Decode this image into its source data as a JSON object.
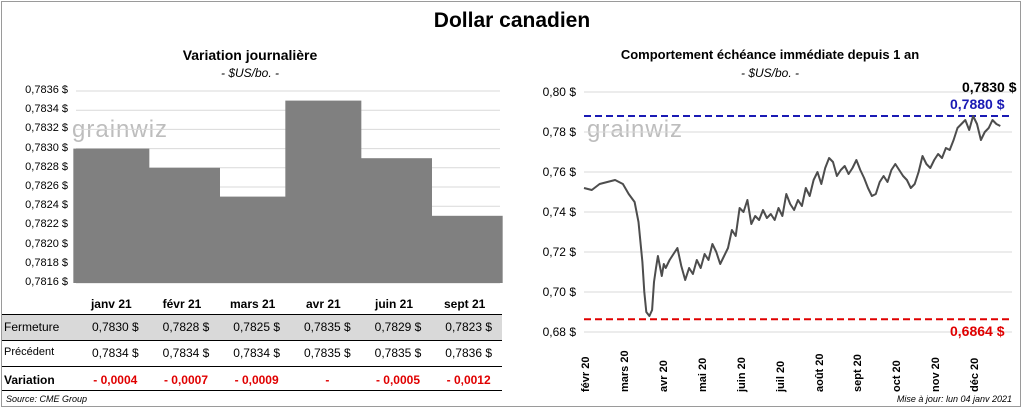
{
  "title": "Dollar canadien",
  "left_chart": {
    "title": "Variation  journalière",
    "unit": "- $US/bo. -",
    "watermark": "grainwiz"
  },
  "right_chart": {
    "title": "Comportement échéance immédiate depuis 1 an",
    "unit": "- $US/bo. -",
    "watermark": "grainwiz",
    "annotations": {
      "last": "0,7830 $",
      "high": "0,7880 $",
      "low": "0,6864 $"
    }
  },
  "table": {
    "rows": [
      {
        "label": "Fermeture",
        "values": [
          "0,7830  $",
          "0,7828  $",
          "0,7825  $",
          "0,7835  $",
          "0,7829  $",
          "0,7823  $"
        ]
      },
      {
        "label": "Précédent",
        "values": [
          "0,7834  $",
          "0,7834  $",
          "0,7834  $",
          "0,7835  $",
          "0,7835  $",
          "0,7836  $"
        ]
      },
      {
        "label": "Variation",
        "values": [
          "- 0,0004",
          "- 0,0007",
          "- 0,0009",
          "-",
          "- 0,0005",
          "- 0,0012"
        ]
      }
    ]
  },
  "footer": {
    "source": "Source: CME Group",
    "updated": "Mise à jour: lun 04 janv 2021"
  },
  "colors": {
    "bar": "#808080",
    "line": "#4d4d4d",
    "high_line": "#1a1ab4",
    "low_line": "#e00000",
    "negative": "#e00000"
  },
  "chart_data": [
    {
      "type": "bar",
      "title": "Variation  journalière",
      "ylabel": "$US/bo.",
      "categories": [
        "janv 21",
        "févr 21",
        "mars 21",
        "avr 21",
        "juin 21",
        "sept 21"
      ],
      "values": [
        0.783,
        0.7828,
        0.7825,
        0.7835,
        0.7829,
        0.7823
      ],
      "ylim": [
        0.7816,
        0.7836
      ],
      "yticks": [
        0.7816,
        0.7818,
        0.782,
        0.7822,
        0.7824,
        0.7826,
        0.7828,
        0.783,
        0.7832,
        0.7834,
        0.7836
      ],
      "ytick_labels": [
        "0,7816 $",
        "0,7818 $",
        "0,7820 $",
        "0,7822 $",
        "0,7824 $",
        "0,7826 $",
        "0,7828 $",
        "0,7830 $",
        "0,7832 $",
        "0,7834 $",
        "0,7836 $"
      ],
      "grid": true
    },
    {
      "type": "line",
      "title": "Comportement échéance immédiate depuis 1 an",
      "ylabel": "$US/bo.",
      "ylim": [
        0.68,
        0.8
      ],
      "yticks": [
        0.68,
        0.7,
        0.72,
        0.74,
        0.76,
        0.78,
        0.8
      ],
      "ytick_labels": [
        "0,68 $",
        "0,70 $",
        "0,72 $",
        "0,74 $",
        "0,76 $",
        "0,78 $",
        "0,80 $"
      ],
      "x_months": [
        "févr 20",
        "mars 20",
        "avr 20",
        "mai 20",
        "juin 20",
        "juil 20",
        "août 20",
        "sept 20",
        "oct 20",
        "nov 20",
        "déc 20"
      ],
      "high": 0.788,
      "low": 0.6864,
      "last": 0.783,
      "x": [
        0,
        0.2,
        0.4,
        0.6,
        0.8,
        1.0,
        1.15,
        1.3,
        1.4,
        1.5,
        1.55,
        1.6,
        1.68,
        1.75,
        1.8,
        1.85,
        1.9,
        2.0,
        2.05,
        2.1,
        2.2,
        2.3,
        2.4,
        2.5,
        2.6,
        2.7,
        2.8,
        2.9,
        3.0,
        3.1,
        3.2,
        3.3,
        3.4,
        3.5,
        3.6,
        3.7,
        3.8,
        3.9,
        4.0,
        4.1,
        4.2,
        4.3,
        4.4,
        4.5,
        4.6,
        4.7,
        4.8,
        4.9,
        5.0,
        5.1,
        5.2,
        5.3,
        5.4,
        5.5,
        5.6,
        5.7,
        5.8,
        5.9,
        6.0,
        6.1,
        6.2,
        6.3,
        6.4,
        6.5,
        6.6,
        6.7,
        6.8,
        6.9,
        7.0,
        7.1,
        7.2,
        7.3,
        7.4,
        7.5,
        7.6,
        7.7,
        7.8,
        7.9,
        8.0,
        8.1,
        8.2,
        8.3,
        8.4,
        8.5,
        8.6,
        8.7,
        8.8,
        8.9,
        9.0,
        9.1,
        9.2,
        9.3,
        9.4,
        9.5,
        9.6,
        9.7,
        9.8,
        9.9,
        10.0,
        10.1,
        10.2,
        10.3,
        10.4,
        10.5,
        10.6,
        10.7
      ],
      "y": [
        0.752,
        0.751,
        0.754,
        0.755,
        0.756,
        0.754,
        0.749,
        0.745,
        0.735,
        0.715,
        0.7,
        0.69,
        0.688,
        0.691,
        0.705,
        0.712,
        0.718,
        0.708,
        0.714,
        0.712,
        0.716,
        0.719,
        0.722,
        0.713,
        0.706,
        0.712,
        0.709,
        0.716,
        0.712,
        0.719,
        0.716,
        0.724,
        0.72,
        0.714,
        0.718,
        0.722,
        0.731,
        0.728,
        0.742,
        0.74,
        0.746,
        0.734,
        0.738,
        0.736,
        0.741,
        0.737,
        0.739,
        0.736,
        0.742,
        0.738,
        0.749,
        0.744,
        0.741,
        0.746,
        0.743,
        0.752,
        0.748,
        0.756,
        0.76,
        0.754,
        0.762,
        0.767,
        0.765,
        0.758,
        0.761,
        0.763,
        0.759,
        0.762,
        0.766,
        0.761,
        0.757,
        0.752,
        0.748,
        0.749,
        0.755,
        0.758,
        0.755,
        0.761,
        0.764,
        0.761,
        0.758,
        0.756,
        0.752,
        0.754,
        0.76,
        0.768,
        0.764,
        0.762,
        0.766,
        0.769,
        0.767,
        0.772,
        0.771,
        0.776,
        0.782,
        0.784,
        0.786,
        0.781,
        0.788,
        0.784,
        0.776,
        0.78,
        0.782,
        0.786,
        0.784,
        0.783
      ],
      "grid": true
    }
  ]
}
